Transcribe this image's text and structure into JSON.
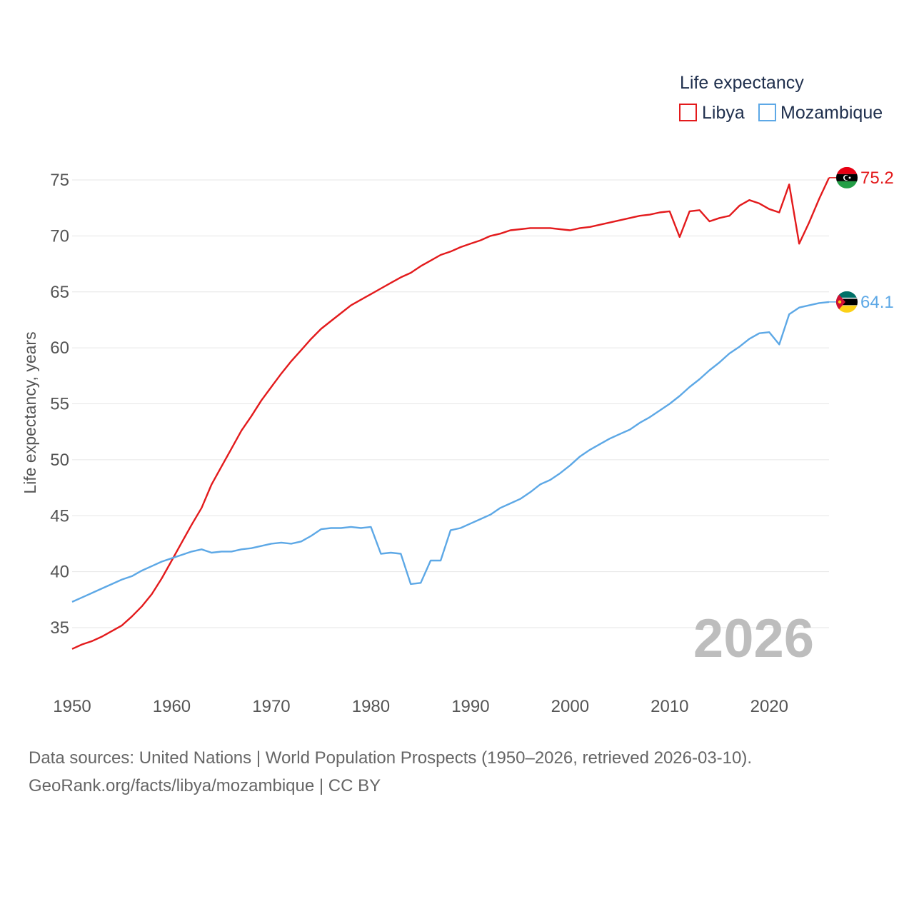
{
  "chart_data": {
    "type": "line",
    "legend_title": "Life expectancy",
    "ylabel": "Life expectancy, years",
    "xlabel": "",
    "xlim": [
      1950,
      2026
    ],
    "ylim": [
      31,
      77
    ],
    "x_ticks": [
      "1950",
      "1960",
      "1970",
      "1980",
      "1990",
      "2000",
      "2010",
      "2020"
    ],
    "y_ticks": [
      "35",
      "40",
      "45",
      "50",
      "55",
      "60",
      "65",
      "70",
      "75"
    ],
    "year_label": "2026",
    "legend_position": "top-right",
    "x": [
      1950,
      1951,
      1952,
      1953,
      1954,
      1955,
      1956,
      1957,
      1958,
      1959,
      1960,
      1961,
      1962,
      1963,
      1964,
      1965,
      1966,
      1967,
      1968,
      1969,
      1970,
      1971,
      1972,
      1973,
      1974,
      1975,
      1976,
      1977,
      1978,
      1979,
      1980,
      1981,
      1982,
      1983,
      1984,
      1985,
      1986,
      1987,
      1988,
      1989,
      1990,
      1991,
      1992,
      1993,
      1994,
      1995,
      1996,
      1997,
      1998,
      1999,
      2000,
      2001,
      2002,
      2003,
      2004,
      2005,
      2006,
      2007,
      2008,
      2009,
      2010,
      2011,
      2012,
      2013,
      2014,
      2015,
      2016,
      2017,
      2018,
      2019,
      2020,
      2021,
      2022,
      2023,
      2024,
      2025,
      2026
    ],
    "series": [
      {
        "name": "Libya",
        "color": "#e31a1c",
        "end_label": "75.2",
        "values": [
          33.1,
          33.5,
          33.8,
          34.2,
          34.7,
          35.2,
          36.0,
          36.9,
          38.0,
          39.4,
          41.0,
          42.6,
          44.2,
          45.7,
          47.8,
          49.4,
          51.0,
          52.6,
          53.9,
          55.3,
          56.5,
          57.7,
          58.8,
          59.8,
          60.8,
          61.7,
          62.4,
          63.1,
          63.8,
          64.3,
          64.8,
          65.3,
          65.8,
          66.3,
          66.7,
          67.3,
          67.8,
          68.3,
          68.6,
          69.0,
          69.3,
          69.6,
          70.0,
          70.2,
          70.5,
          70.6,
          70.7,
          70.7,
          70.7,
          70.6,
          70.5,
          70.7,
          70.8,
          71.0,
          71.2,
          71.4,
          71.6,
          71.8,
          71.9,
          72.1,
          72.2,
          69.9,
          72.2,
          72.3,
          71.3,
          71.6,
          71.8,
          72.7,
          73.2,
          72.9,
          72.4,
          72.1,
          74.6,
          69.3,
          71.2,
          73.3,
          75.2
        ]
      },
      {
        "name": "Mozambique",
        "color": "#5da8e6",
        "end_label": "64.1",
        "values": [
          37.3,
          37.7,
          38.1,
          38.5,
          38.9,
          39.3,
          39.6,
          40.1,
          40.5,
          40.9,
          41.2,
          41.5,
          41.8,
          42.0,
          41.7,
          41.8,
          41.8,
          42.0,
          42.1,
          42.3,
          42.5,
          42.6,
          42.5,
          42.7,
          43.2,
          43.8,
          43.9,
          43.9,
          44.0,
          43.9,
          44.0,
          41.6,
          41.7,
          41.6,
          38.9,
          39.0,
          41.0,
          41.0,
          43.7,
          43.9,
          44.3,
          44.7,
          45.1,
          45.7,
          46.1,
          46.5,
          47.1,
          47.8,
          48.2,
          48.8,
          49.5,
          50.3,
          50.9,
          51.4,
          51.9,
          52.3,
          52.7,
          53.3,
          53.8,
          54.4,
          55.0,
          55.7,
          56.5,
          57.2,
          58.0,
          58.7,
          59.5,
          60.1,
          60.8,
          61.3,
          61.4,
          60.3,
          63.0,
          63.6,
          63.8,
          64.0,
          64.1
        ]
      }
    ]
  },
  "footer": {
    "source_line": "Data sources: United Nations | World Population Prospects (1950–2026, retrieved 2026-03-10).",
    "credit_line": "GeoRank.org/facts/libya/mozambique | CC BY"
  }
}
